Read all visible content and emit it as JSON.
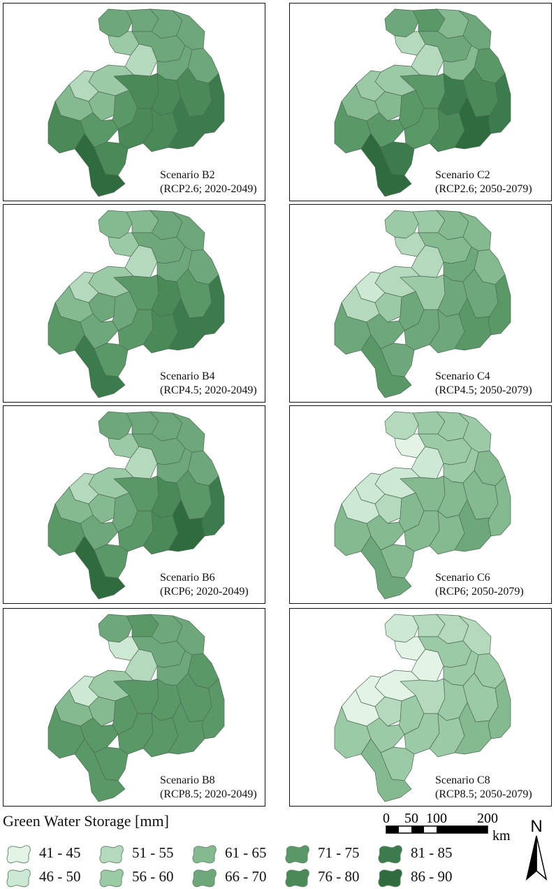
{
  "legend": {
    "title": "Green Water Storage [mm]",
    "classes": [
      {
        "label": "41 - 45",
        "color": "#e3f3e6"
      },
      {
        "label": "46 - 50",
        "color": "#cde8d3"
      },
      {
        "label": "51 - 55",
        "color": "#b5d9bd"
      },
      {
        "label": "56 - 60",
        "color": "#9cc9a6"
      },
      {
        "label": "61 - 65",
        "color": "#85b990"
      },
      {
        "label": "66 - 70",
        "color": "#6ea87a"
      },
      {
        "label": "71 - 75",
        "color": "#5b9868"
      },
      {
        "label": "76 - 80",
        "color": "#4a8958"
      },
      {
        "label": "81 - 85",
        "color": "#3c7b4b"
      },
      {
        "label": "86 - 90",
        "color": "#2f6b3d"
      }
    ]
  },
  "scale_bar": {
    "labels": [
      "0",
      "50",
      "100",
      "200"
    ],
    "unit": "km"
  },
  "north_arrow": {
    "label": "N",
    "icon": "north-arrow-icon"
  },
  "panels": [
    {
      "name": "Scenario B2",
      "period": "(RCP2.6; 2020-2049)",
      "region_classes": [
        5,
        5,
        3,
        5,
        2,
        5,
        5,
        5,
        5,
        3,
        7,
        2,
        4,
        4,
        6,
        7,
        6,
        7,
        7,
        7,
        8,
        7,
        8,
        7,
        9
      ]
    },
    {
      "name": "Scenario C2",
      "period": "(RCP2.6; 2050-2079)",
      "region_classes": [
        5,
        6,
        2,
        4,
        2,
        5,
        5,
        6,
        4,
        3,
        6,
        3,
        4,
        4,
        6,
        6,
        6,
        6,
        8,
        7,
        8,
        7,
        9,
        8,
        9
      ]
    },
    {
      "name": "Scenario B4",
      "period": "(RCP4.5; 2020-2049)",
      "region_classes": [
        4,
        4,
        3,
        5,
        2,
        5,
        5,
        5,
        5,
        3,
        6,
        2,
        4,
        5,
        5,
        6,
        5,
        6,
        7,
        6,
        8,
        7,
        8,
        6,
        8
      ]
    },
    {
      "name": "Scenario C4",
      "period": "(RCP4.5; 2050-2079)",
      "region_classes": [
        3,
        3,
        2,
        4,
        2,
        4,
        4,
        4,
        5,
        2,
        3,
        1,
        2,
        3,
        5,
        5,
        5,
        5,
        5,
        5,
        6,
        5,
        6,
        5,
        6
      ]
    },
    {
      "name": "Scenario B6",
      "period": "(RCP6; 2020-2049)",
      "region_classes": [
        5,
        5,
        3,
        5,
        2,
        5,
        5,
        5,
        5,
        3,
        6,
        2,
        4,
        4,
        5,
        6,
        5,
        6,
        7,
        6,
        8,
        7,
        9,
        6,
        9
      ]
    },
    {
      "name": "Scenario C6",
      "period": "(RCP6; 2050-2079)",
      "region_classes": [
        2,
        3,
        0,
        3,
        1,
        3,
        3,
        4,
        3,
        1,
        4,
        1,
        1,
        2,
        4,
        4,
        4,
        4,
        4,
        4,
        4,
        4,
        5,
        4,
        5
      ]
    },
    {
      "name": "Scenario B8",
      "period": "(RCP8.5; 2020-2049)",
      "region_classes": [
        5,
        6,
        1,
        5,
        2,
        5,
        5,
        6,
        5,
        3,
        6,
        1,
        4,
        4,
        6,
        6,
        6,
        6,
        6,
        6,
        6,
        6,
        6,
        6,
        6
      ]
    },
    {
      "name": "Scenario C8",
      "period": "(RCP8.5; 2050-2079)",
      "region_classes": [
        1,
        2,
        0,
        2,
        0,
        3,
        2,
        3,
        3,
        0,
        2,
        0,
        0,
        2,
        3,
        3,
        3,
        3,
        3,
        3,
        4,
        3,
        4,
        3,
        4
      ]
    }
  ]
}
